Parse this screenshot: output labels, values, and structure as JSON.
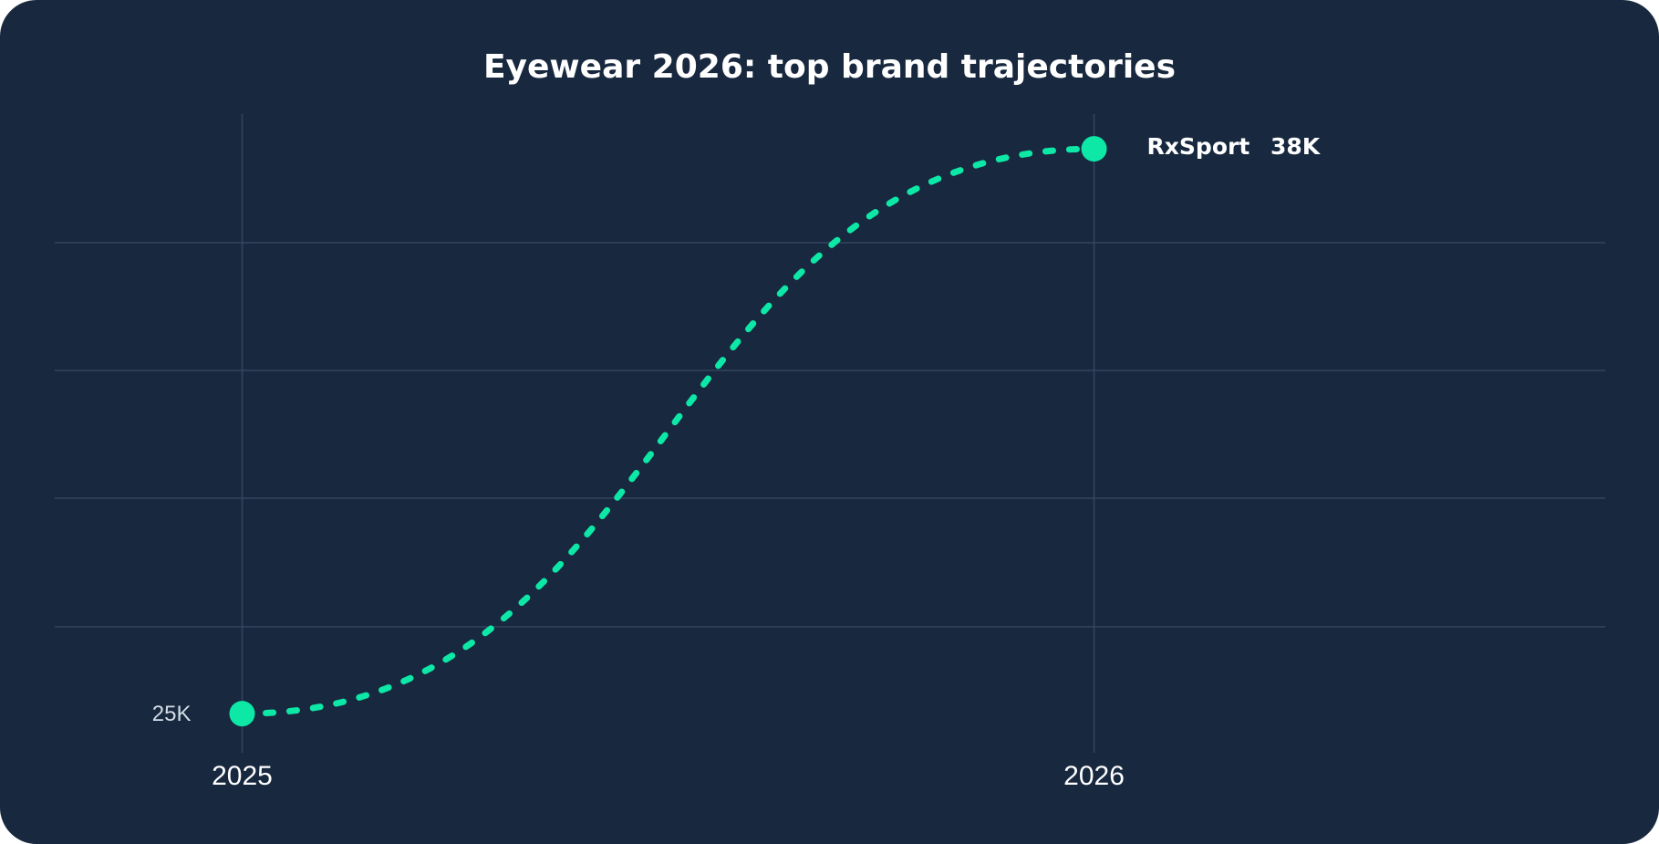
{
  "colors": {
    "background": "#17283f",
    "grid": "#34465f",
    "text": "#ffffff",
    "muted_text": "#d3dae4",
    "series": "#0de8a7"
  },
  "chart_data": {
    "type": "line",
    "title": "Eyewear 2026: top brand trajectories",
    "x": [
      2025,
      2026
    ],
    "xticks": [
      "2025",
      "2026"
    ],
    "xlim": [
      2024.78,
      2026.6
    ],
    "ylim": [
      24.1,
      38.8
    ],
    "grid": true,
    "line_style": "dotted",
    "series": [
      {
        "name": "RxSport",
        "values": [
          25,
          38
        ],
        "start_label": "25K",
        "end_value_label": "38K"
      }
    ]
  }
}
